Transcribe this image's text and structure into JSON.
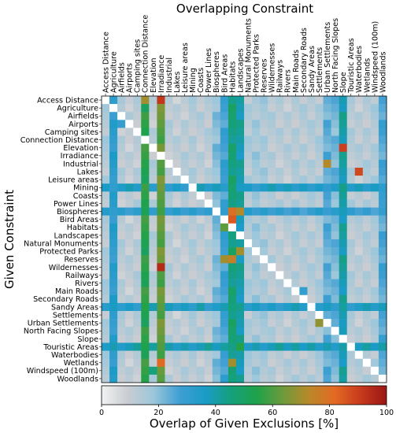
{
  "chart_data": {
    "type": "heatmap",
    "title": "Overlapping Constraint",
    "xlabel": "Overlapping Constraint",
    "ylabel": "Given Constraint",
    "colorbar_label": "Overlap of Given Exclusions [%]",
    "colorbar_range": [
      0,
      100
    ],
    "colorbar_ticks": [
      0,
      20,
      40,
      60,
      80,
      100
    ],
    "colormap": [
      "#f2f2f2",
      "#c9cdd2",
      "#9cc7da",
      "#3f9fd3",
      "#1a9bc7",
      "#15a07a",
      "#1fa24a",
      "#6d9a3c",
      "#b8892a",
      "#e36a22",
      "#c73a1c",
      "#9b1616"
    ],
    "labels": [
      "Access Distance",
      "Agriculture",
      "Airfields",
      "Airports",
      "Camping sites",
      "Connection Distance",
      "Elevation",
      "Irradiance",
      "Industrial",
      "Lakes",
      "Leisure areas",
      "Mining",
      "Coasts",
      "Power Lines",
      "Biospheres",
      "Bird Areas",
      "Habitats",
      "Landscapes",
      "Natural Monuments",
      "Protected Parks",
      "Reserves",
      "Wildernesses",
      "Railways",
      "Rivers",
      "Main Roads",
      "Secondary Roads",
      "Sandy Areas",
      "Settlements",
      "Urban Settlements",
      "North Facing Slopes",
      "Slope",
      "Touristic Areas",
      "Waterbodies",
      "Wetlands",
      "Windspeed (100m)",
      "Woodlands"
    ],
    "col_profile": [
      14,
      32,
      12,
      11,
      12,
      55,
      12,
      62,
      12,
      11,
      12,
      13,
      12,
      12,
      20,
      28,
      46,
      40,
      14,
      16,
      15,
      13,
      12,
      12,
      13,
      13,
      13,
      14,
      24,
      22,
      40,
      13,
      12,
      13,
      14,
      26
    ],
    "row_band": [
      0,
      0,
      0,
      0,
      0,
      0,
      0,
      0,
      0,
      0,
      0,
      35,
      0,
      0,
      30,
      0,
      0,
      0,
      0,
      0,
      0,
      0,
      0,
      0,
      0,
      0,
      35,
      0,
      0,
      0,
      0,
      38,
      0,
      0,
      0,
      0
    ],
    "highlights": [
      {
        "row": "Access Distance",
        "col": "Connection Distance",
        "value": 70
      },
      {
        "row": "Access Distance",
        "col": "Irradiance",
        "value": 92
      },
      {
        "row": "Elevation",
        "col": "Slope",
        "value": 90
      },
      {
        "row": "Lakes",
        "col": "Waterbodies",
        "value": 88
      },
      {
        "row": "Wildernesses",
        "col": "Irradiance",
        "value": 95
      },
      {
        "row": "Biospheres",
        "col": "Habitats",
        "value": 80
      },
      {
        "row": "Biospheres",
        "col": "Landscapes",
        "value": 72
      },
      {
        "row": "Bird Areas",
        "col": "Habitats",
        "value": 85
      },
      {
        "row": "Habitats",
        "col": "Bird Areas",
        "value": 62
      },
      {
        "row": "Reserves",
        "col": "Habitats",
        "value": 75
      },
      {
        "row": "Protected Parks",
        "col": "Landscapes",
        "value": 70
      },
      {
        "row": "Urban Settlements",
        "col": "Settlements",
        "value": 68
      },
      {
        "row": "Airports",
        "col": "Airfields",
        "value": 30
      },
      {
        "row": "Industrial",
        "col": "Urban Settlements",
        "value": 72
      },
      {
        "row": "Sandy Areas",
        "col": "Coasts",
        "value": 40
      },
      {
        "row": "Wetlands",
        "col": "Irradiance",
        "value": 82
      },
      {
        "row": "Wetlands",
        "col": "Habitats",
        "value": 70
      },
      {
        "row": "Touristic Areas",
        "col": "Landscapes",
        "value": 55
      },
      {
        "row": "North Facing Slopes",
        "col": "Slope",
        "value": 38
      },
      {
        "row": "Windspeed (100m)",
        "col": "Elevation",
        "value": 45
      },
      {
        "row": "Reserves",
        "col": "Bird Areas",
        "value": 70
      },
      {
        "row": "Main Roads",
        "col": "Secondary Roads",
        "value": 30
      }
    ]
  }
}
